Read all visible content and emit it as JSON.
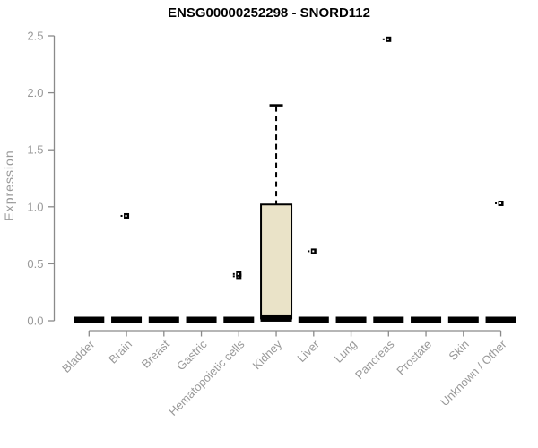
{
  "chart_data": {
    "type": "boxplot",
    "title": "ENSG00000252298 - SNORD112",
    "ylabel": "Expression",
    "xlabel": "",
    "ylim": [
      0,
      2.5
    ],
    "yticks": [
      0.0,
      0.5,
      1.0,
      1.5,
      2.0,
      2.5
    ],
    "grid": false,
    "legend": false,
    "categories": [
      "Bladder",
      "Brain",
      "Breast",
      "Gastric",
      "Hematopoietic cells",
      "Kidney",
      "Liver",
      "Lung",
      "Pancreas",
      "Prostate",
      "Skin",
      "Unknown / Other"
    ],
    "boxes": [
      {
        "category": "Bladder",
        "q1": 0,
        "median": 0,
        "q3": 0,
        "whisker_low": 0,
        "whisker_high": 0,
        "outliers": []
      },
      {
        "category": "Brain",
        "q1": 0,
        "median": 0,
        "q3": 0,
        "whisker_low": 0,
        "whisker_high": 0,
        "outliers": [
          0.92
        ]
      },
      {
        "category": "Breast",
        "q1": 0,
        "median": 0,
        "q3": 0,
        "whisker_low": 0,
        "whisker_high": 0,
        "outliers": []
      },
      {
        "category": "Gastric",
        "q1": 0,
        "median": 0,
        "q3": 0,
        "whisker_low": 0,
        "whisker_high": 0,
        "outliers": []
      },
      {
        "category": "Hematopoietic cells",
        "q1": 0,
        "median": 0,
        "q3": 0,
        "whisker_low": 0,
        "whisker_high": 0,
        "outliers": [
          0.39,
          0.41
        ]
      },
      {
        "category": "Kidney",
        "q1": 0.02,
        "median": 0.02,
        "q3": 1.02,
        "whisker_low": 0,
        "whisker_high": 1.89,
        "outliers": []
      },
      {
        "category": "Liver",
        "q1": 0,
        "median": 0,
        "q3": 0,
        "whisker_low": 0,
        "whisker_high": 0,
        "outliers": [
          0.61
        ]
      },
      {
        "category": "Lung",
        "q1": 0,
        "median": 0,
        "q3": 0,
        "whisker_low": 0,
        "whisker_high": 0,
        "outliers": []
      },
      {
        "category": "Pancreas",
        "q1": 0,
        "median": 0,
        "q3": 0,
        "whisker_low": 0,
        "whisker_high": 0,
        "outliers": [
          2.47
        ]
      },
      {
        "category": "Prostate",
        "q1": 0,
        "median": 0,
        "q3": 0,
        "whisker_low": 0,
        "whisker_high": 0,
        "outliers": []
      },
      {
        "category": "Skin",
        "q1": 0,
        "median": 0,
        "q3": 0,
        "whisker_low": 0,
        "whisker_high": 0,
        "outliers": []
      },
      {
        "category": "Unknown / Other",
        "q1": 0,
        "median": 0,
        "q3": 0,
        "whisker_low": 0,
        "whisker_high": 0,
        "outliers": [
          1.03
        ]
      }
    ],
    "colors": {
      "box_fill": "#EAE3C8",
      "box_border": "#000000",
      "median": "#000000",
      "outlier": "#000000",
      "axis_line": "#8a8a8a",
      "tick_text": "#999999",
      "title_text": "#000000",
      "background": "#ffffff"
    }
  }
}
